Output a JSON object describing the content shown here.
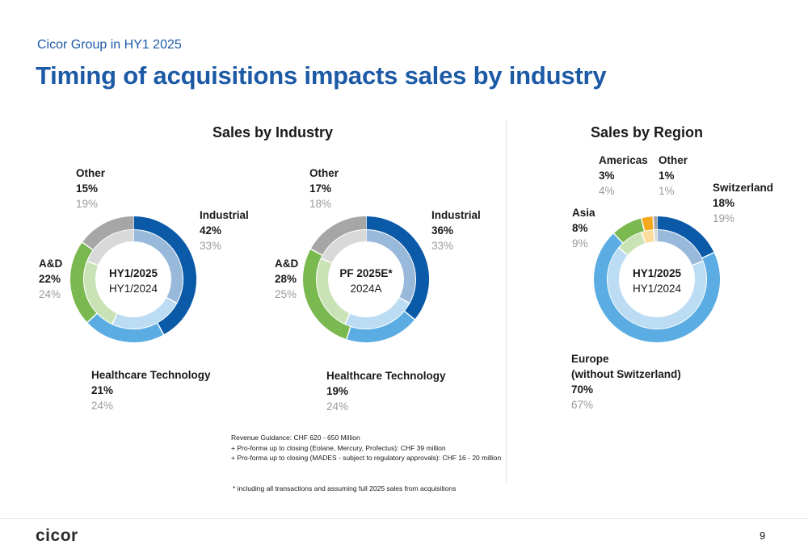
{
  "header": {
    "subtitle": "Cicor Group in HY1 2025",
    "title": "Timing of acquisitions impacts sales by industry"
  },
  "sections": {
    "industry_title": "Sales by Industry",
    "region_title": "Sales by Region"
  },
  "chart_data": [
    {
      "type": "pie",
      "style": "double-donut",
      "center_primary": "HY1/2025",
      "center_secondary": "HY1/2024",
      "categories": [
        "Industrial",
        "Healthcare Technology",
        "A&D",
        "Other"
      ],
      "series": [
        {
          "name": "HY1/2025",
          "ring": "outer",
          "values": [
            42,
            21,
            22,
            15
          ],
          "labels": [
            "42%",
            "21%",
            "22%",
            "15%"
          ]
        },
        {
          "name": "HY1/2024",
          "ring": "inner",
          "values": [
            33,
            24,
            24,
            19
          ],
          "labels": [
            "33%",
            "24%",
            "24%",
            "19%"
          ]
        }
      ],
      "outer_colors": [
        "#0a5aa8",
        "#5aace2",
        "#7ab850",
        "#a6a6a6"
      ],
      "inner_colors": [
        "#99b9da",
        "#bbdcf2",
        "#c9e3b6",
        "#d9d9d9"
      ]
    },
    {
      "type": "pie",
      "style": "double-donut",
      "center_primary": "PF 2025E*",
      "center_secondary": "2024A",
      "categories": [
        "Industrial",
        "Healthcare Technology",
        "A&D",
        "Other"
      ],
      "series": [
        {
          "name": "PF 2025E*",
          "ring": "outer",
          "values": [
            36,
            19,
            28,
            17
          ],
          "labels": [
            "36%",
            "19%",
            "28%",
            "17%"
          ]
        },
        {
          "name": "2024A",
          "ring": "inner",
          "values": [
            33,
            24,
            25,
            18
          ],
          "labels": [
            "33%",
            "24%",
            "25%",
            "18%"
          ]
        }
      ],
      "outer_colors": [
        "#0a5aa8",
        "#5aace2",
        "#7ab850",
        "#a6a6a6"
      ],
      "inner_colors": [
        "#99b9da",
        "#bbdcf2",
        "#c9e3b6",
        "#d9d9d9"
      ]
    },
    {
      "type": "pie",
      "style": "double-donut",
      "center_primary": "HY1/2025",
      "center_secondary": "HY1/2024",
      "categories": [
        "Switzerland",
        "Europe\n(without Switzerland)",
        "Asia",
        "Americas",
        "Other"
      ],
      "series": [
        {
          "name": "HY1/2025",
          "ring": "outer",
          "values": [
            18,
            70,
            8,
            3,
            1
          ],
          "labels": [
            "18%",
            "70%",
            "8%",
            "3%",
            "1%"
          ]
        },
        {
          "name": "HY1/2024",
          "ring": "inner",
          "values": [
            19,
            67,
            9,
            4,
            1
          ],
          "labels": [
            "19%",
            "67%",
            "9%",
            "4%",
            "1%"
          ]
        }
      ],
      "outer_colors": [
        "#0a5aa8",
        "#5aace2",
        "#7ab850",
        "#f5a81c",
        "#a6a6a6"
      ],
      "inner_colors": [
        "#99b9da",
        "#bbdcf2",
        "#c9e3b6",
        "#fbdc9c",
        "#d9d9d9"
      ]
    }
  ],
  "labels": {
    "c1": {
      "industrial": {
        "name": "Industrial",
        "cur": "42%",
        "prev": "33%"
      },
      "healthcare": {
        "name": "Healthcare Technology",
        "cur": "21%",
        "prev": "24%"
      },
      "ad": {
        "name": "A&D",
        "cur": "22%",
        "prev": "24%"
      },
      "other": {
        "name": "Other",
        "cur": "15%",
        "prev": "19%"
      }
    },
    "c2": {
      "industrial": {
        "name": "Industrial",
        "cur": "36%",
        "prev": "33%"
      },
      "healthcare": {
        "name": "Healthcare Technology",
        "cur": "19%",
        "prev": "24%"
      },
      "ad": {
        "name": "A&D",
        "cur": "28%",
        "prev": "25%"
      },
      "other": {
        "name": "Other",
        "cur": "17%",
        "prev": "18%"
      }
    },
    "c3": {
      "switzerland": {
        "name": "Switzerland",
        "cur": "18%",
        "prev": "19%"
      },
      "europe": {
        "name1": "Europe",
        "name2": "(without Switzerland)",
        "cur": "70%",
        "prev": "67%"
      },
      "asia": {
        "name": "Asia",
        "cur": "8%",
        "prev": "9%"
      },
      "americas": {
        "name": "Americas",
        "cur": "3%",
        "prev": "4%"
      },
      "other": {
        "name": "Other",
        "cur": "1%",
        "prev": "1%"
      }
    }
  },
  "notes": {
    "line1": "Revenue Guidance: CHF 620 - 650 Million",
    "line2": "+ Pro-forma up to closing  (Eolane, Mercury, Profectus): CHF 39 million",
    "line3": "+ Pro-forma up to closing  (MADES - subject to regulatory approvals): CHF 16 - 20 million",
    "footnote": "* including all transactions and assuming full 2025 sales from acquisitions"
  },
  "footer": {
    "logo": "cicor",
    "page_number": "9"
  }
}
